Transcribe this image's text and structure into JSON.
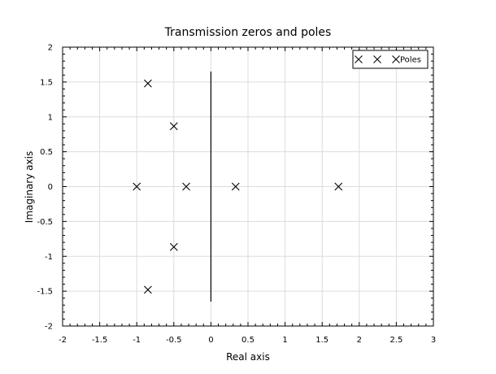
{
  "chart_data": {
    "type": "scatter",
    "title": "Transmission zeros and poles",
    "xlabel": "Real axis",
    "ylabel": "Imaginary axis",
    "xlim": [
      -2,
      3
    ],
    "ylim": [
      -2,
      2
    ],
    "x_ticks": [
      -2,
      -1.5,
      -1,
      -0.5,
      0,
      0.5,
      1,
      1.5,
      2,
      2.5,
      3
    ],
    "x_tick_labels": [
      "-2",
      "-1.5",
      "-1",
      "-0.5",
      "0",
      "0.5",
      "1",
      "1.5",
      "2",
      "2.5",
      "3"
    ],
    "y_ticks": [
      -2,
      -1.5,
      -1,
      -0.5,
      0,
      0.5,
      1,
      1.5,
      2
    ],
    "y_tick_labels": [
      "-2",
      "-1.5",
      "-1",
      "-0.5",
      "0",
      "0.5",
      "1",
      "1.5",
      "2"
    ],
    "grid": true,
    "legend_position": "top-right",
    "series": [
      {
        "name": "Poles",
        "marker": "x",
        "color": "#000000",
        "points": [
          [
            -0.85,
            1.48
          ],
          [
            -0.5,
            0.866
          ],
          [
            -1.0,
            0.0
          ],
          [
            -0.333,
            0.0
          ],
          [
            0.333,
            0.0
          ],
          [
            1.72,
            0.0
          ],
          [
            -0.5,
            -0.866
          ],
          [
            -0.85,
            -1.48
          ]
        ]
      }
    ],
    "reference_line": {
      "x": 0,
      "y_range": [
        -1.65,
        1.65
      ],
      "color": "#000000"
    }
  }
}
